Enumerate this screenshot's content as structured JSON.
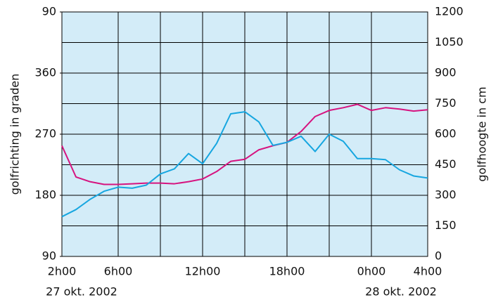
{
  "chart_data": {
    "type": "line",
    "y_label": "golfrichting in graden",
    "y2_label": "golfhoogte in cm",
    "categories": [
      "2h00",
      null,
      null,
      null,
      "6h00",
      null,
      null,
      null,
      null,
      null,
      "12h00",
      null,
      null,
      null,
      null,
      null,
      "18h00",
      null,
      null,
      null,
      null,
      null,
      "0h00",
      null,
      null,
      null,
      "4h00"
    ],
    "dates": [
      "27 okt. 2002",
      "28 okt. 2002"
    ],
    "series": [
      {
        "name": "golfrichting",
        "color": "#d6137f",
        "axis": "y",
        "values": [
          253,
          207,
          200,
          196,
          196,
          197,
          198,
          198,
          197,
          200,
          204,
          215,
          230,
          233,
          247,
          253,
          258,
          274,
          296,
          305,
          309,
          314,
          305,
          309,
          307,
          304,
          306
        ]
      },
      {
        "name": "golfhoogte",
        "color": "#16a6e0",
        "axis": "y2",
        "values": [
          195,
          230,
          280,
          320,
          340,
          335,
          350,
          405,
          430,
          505,
          455,
          555,
          700,
          710,
          660,
          545,
          560,
          590,
          515,
          600,
          565,
          480,
          480,
          475,
          425,
          395,
          385
        ]
      }
    ],
    "ylim": [
      90,
      450
    ],
    "yticks": [
      90,
      180,
      270,
      360,
      {
        "value": 450,
        "label": "90"
      }
    ],
    "y2lim": [
      0,
      1200
    ],
    "y2ticks": [
      0,
      150,
      300,
      450,
      600,
      750,
      900,
      1050,
      1200
    ],
    "grid": true,
    "background": "#d3ecf8"
  }
}
